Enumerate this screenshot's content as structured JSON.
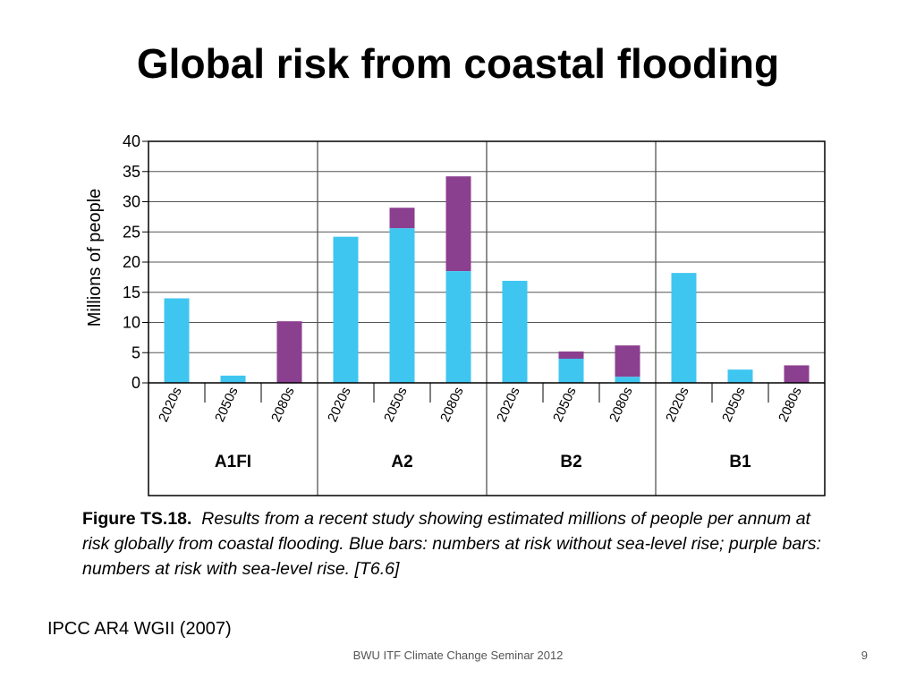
{
  "slide": {
    "title": "Global risk from coastal flooding",
    "source": "IPCC AR4 WGII (2007)",
    "footer": "BWU ITF Climate Change Seminar 2012",
    "page_number": "9"
  },
  "caption": {
    "label": "Figure TS.18.",
    "text": "Results from a recent study showing estimated millions of people per annum at risk globally from coastal flooding. Blue bars: numbers at risk without sea-level rise; purple bars: numbers at risk with sea-level rise. [T6.6]"
  },
  "colors": {
    "without_slr": "#3fc6f0",
    "with_slr": "#8b3f8f",
    "grid": "#555555",
    "axis": "#000000"
  },
  "chart_data": {
    "type": "bar",
    "stacked": true,
    "ylabel": "Millions of people",
    "ylim": [
      0,
      40
    ],
    "yticks": [
      0,
      5,
      10,
      15,
      20,
      25,
      30,
      35,
      40
    ],
    "grid": true,
    "groups": [
      {
        "name": "A1FI",
        "categories": [
          "2020s",
          "2050s",
          "2080s"
        ],
        "without_slr": [
          14,
          1.2,
          0
        ],
        "with_slr_total": [
          14,
          1.2,
          10.2
        ]
      },
      {
        "name": "A2",
        "categories": [
          "2020s",
          "2050s",
          "2080s"
        ],
        "without_slr": [
          24.2,
          25.6,
          18.5
        ],
        "with_slr_total": [
          24.2,
          29,
          34.2
        ]
      },
      {
        "name": "B2",
        "categories": [
          "2020s",
          "2050s",
          "2080s"
        ],
        "without_slr": [
          16.9,
          4,
          1
        ],
        "with_slr_total": [
          16.9,
          5.2,
          6.2
        ]
      },
      {
        "name": "B1",
        "categories": [
          "2020s",
          "2050s",
          "2080s"
        ],
        "without_slr": [
          18.2,
          2.2,
          0
        ],
        "with_slr_total": [
          18.2,
          2.2,
          2.9
        ]
      }
    ]
  }
}
